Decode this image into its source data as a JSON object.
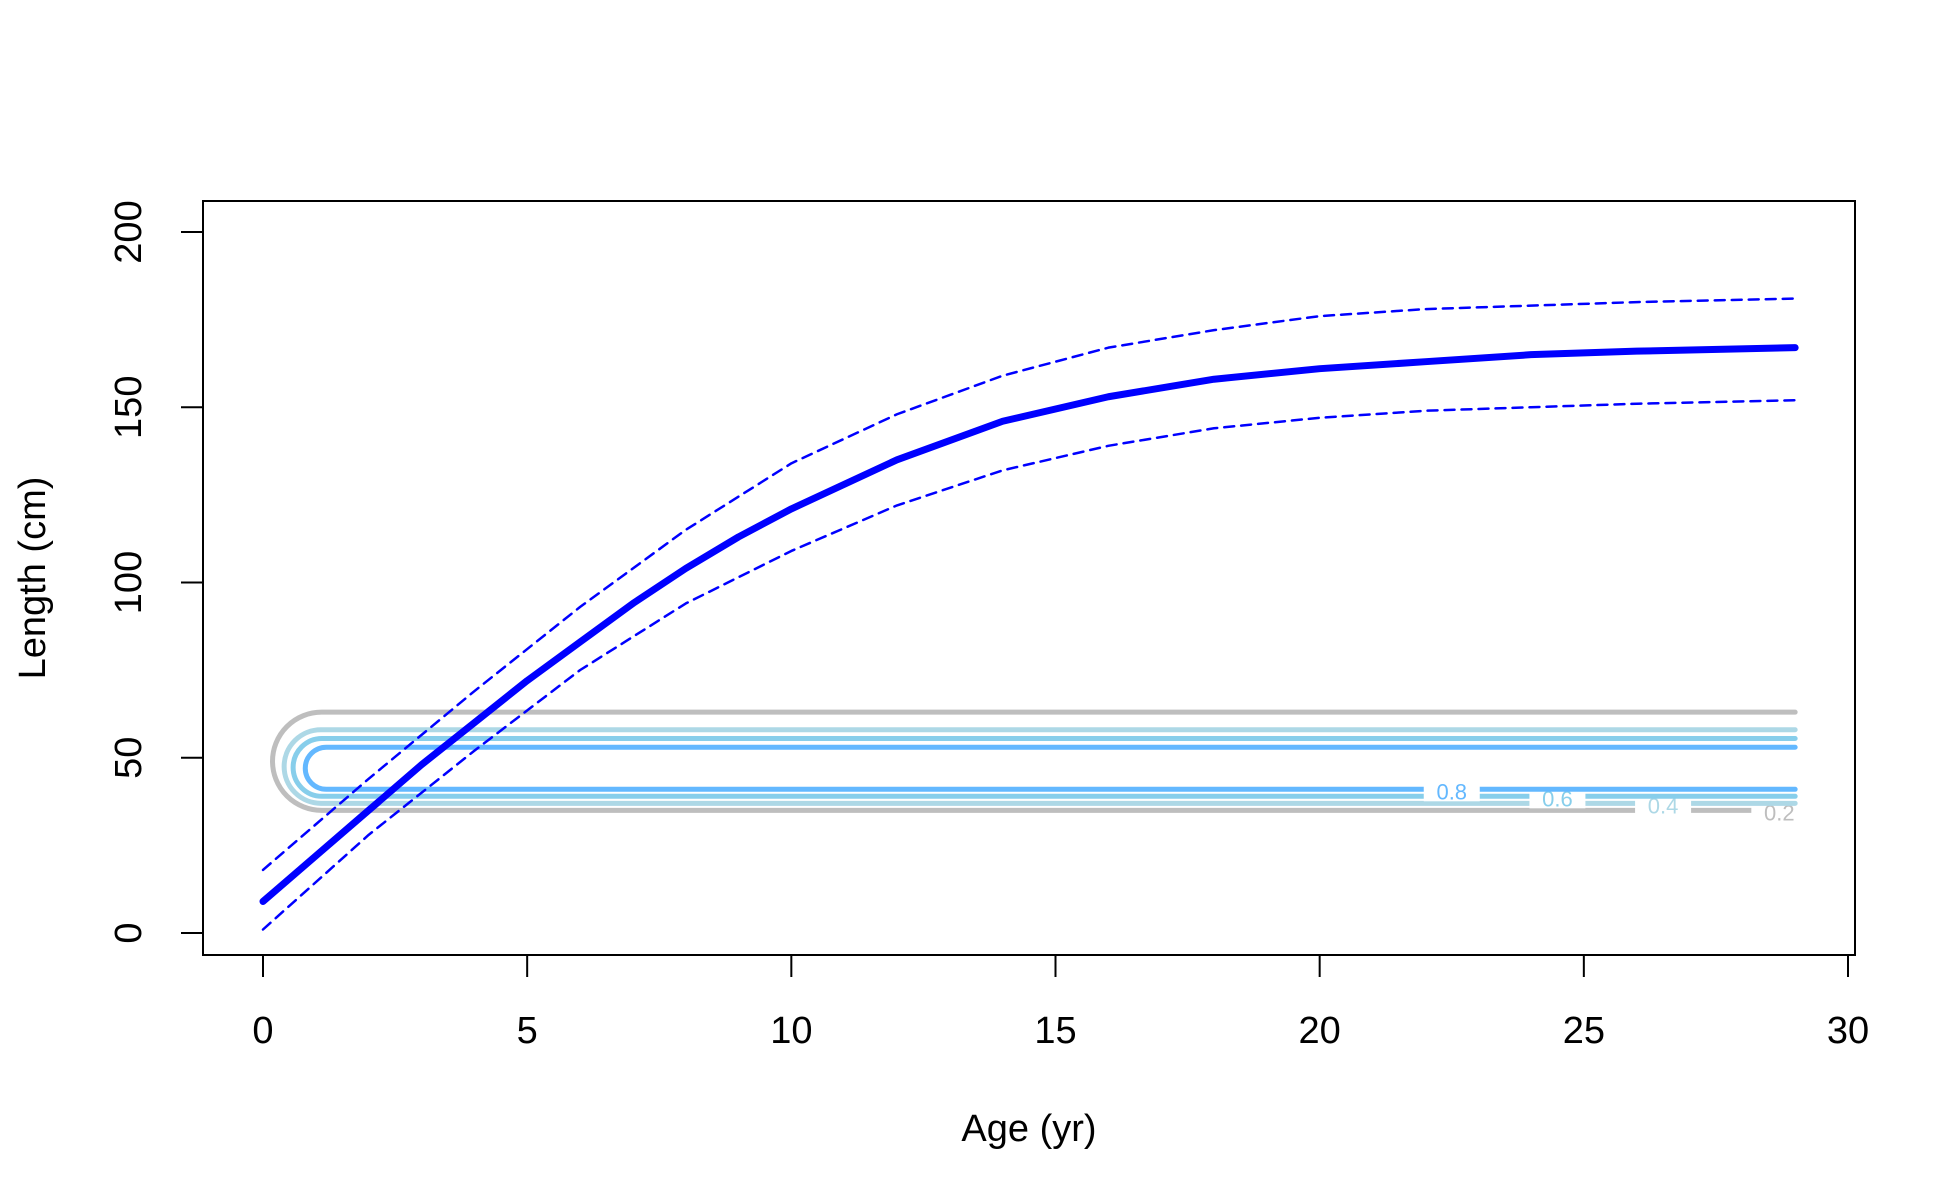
{
  "chart_data": {
    "type": "line",
    "xlabel": "Age (yr)",
    "ylabel": "Length (cm)",
    "xlim": [
      0,
      30
    ],
    "ylim": [
      0,
      200
    ],
    "x_ticks": [
      0,
      5,
      10,
      15,
      20,
      25,
      30
    ],
    "y_ticks": [
      0,
      50,
      100,
      150,
      200
    ],
    "grid": false,
    "colors": {
      "mean": "#0000ff",
      "interval": "#0000ff",
      "contour_levels": [
        "#bebebe",
        "#add8e6",
        "#87ceeb",
        "#63b8ff"
      ]
    },
    "series": [
      {
        "style": "solid",
        "x": [
          0,
          1,
          2,
          3,
          4,
          5,
          6,
          7,
          8,
          9,
          10,
          12,
          14,
          16,
          18,
          20,
          22,
          24,
          26,
          29
        ],
        "y": [
          9,
          22,
          35,
          48,
          60,
          72,
          83,
          94,
          104,
          113,
          121,
          135,
          146,
          153,
          158,
          161,
          163,
          165,
          166,
          167
        ]
      },
      {
        "style": "dashed",
        "x": [
          0,
          2,
          4,
          6,
          8,
          10,
          12,
          14,
          16,
          18,
          20,
          22,
          24,
          26,
          29
        ],
        "y": [
          18,
          44,
          69,
          93,
          115,
          134,
          148,
          159,
          167,
          172,
          176,
          178,
          179,
          180,
          181
        ]
      },
      {
        "style": "dashed",
        "x": [
          0,
          2,
          4,
          6,
          8,
          10,
          12,
          14,
          16,
          18,
          20,
          22,
          24,
          26,
          29
        ],
        "y": [
          1,
          28,
          52,
          75,
          94,
          109,
          122,
          132,
          139,
          144,
          147,
          149,
          150,
          151,
          152
        ]
      }
    ],
    "contours": [
      {
        "label": "0.2",
        "color": "#bebebe",
        "upper": 63,
        "lower": 35,
        "x_left": 0.18,
        "label_x": 28.7
      },
      {
        "label": "0.4",
        "color": "#add8e6",
        "upper": 58,
        "lower": 37,
        "x_left": 0.4,
        "label_x": 26.5
      },
      {
        "label": "0.6",
        "color": "#87ceeb",
        "upper": 55.5,
        "lower": 39,
        "x_left": 0.57,
        "label_x": 24.5
      },
      {
        "label": "0.8",
        "color": "#63b8ff",
        "upper": 53,
        "lower": 41,
        "x_left": 0.8,
        "label_x": 22.5
      }
    ],
    "contour_x_right": 29
  }
}
